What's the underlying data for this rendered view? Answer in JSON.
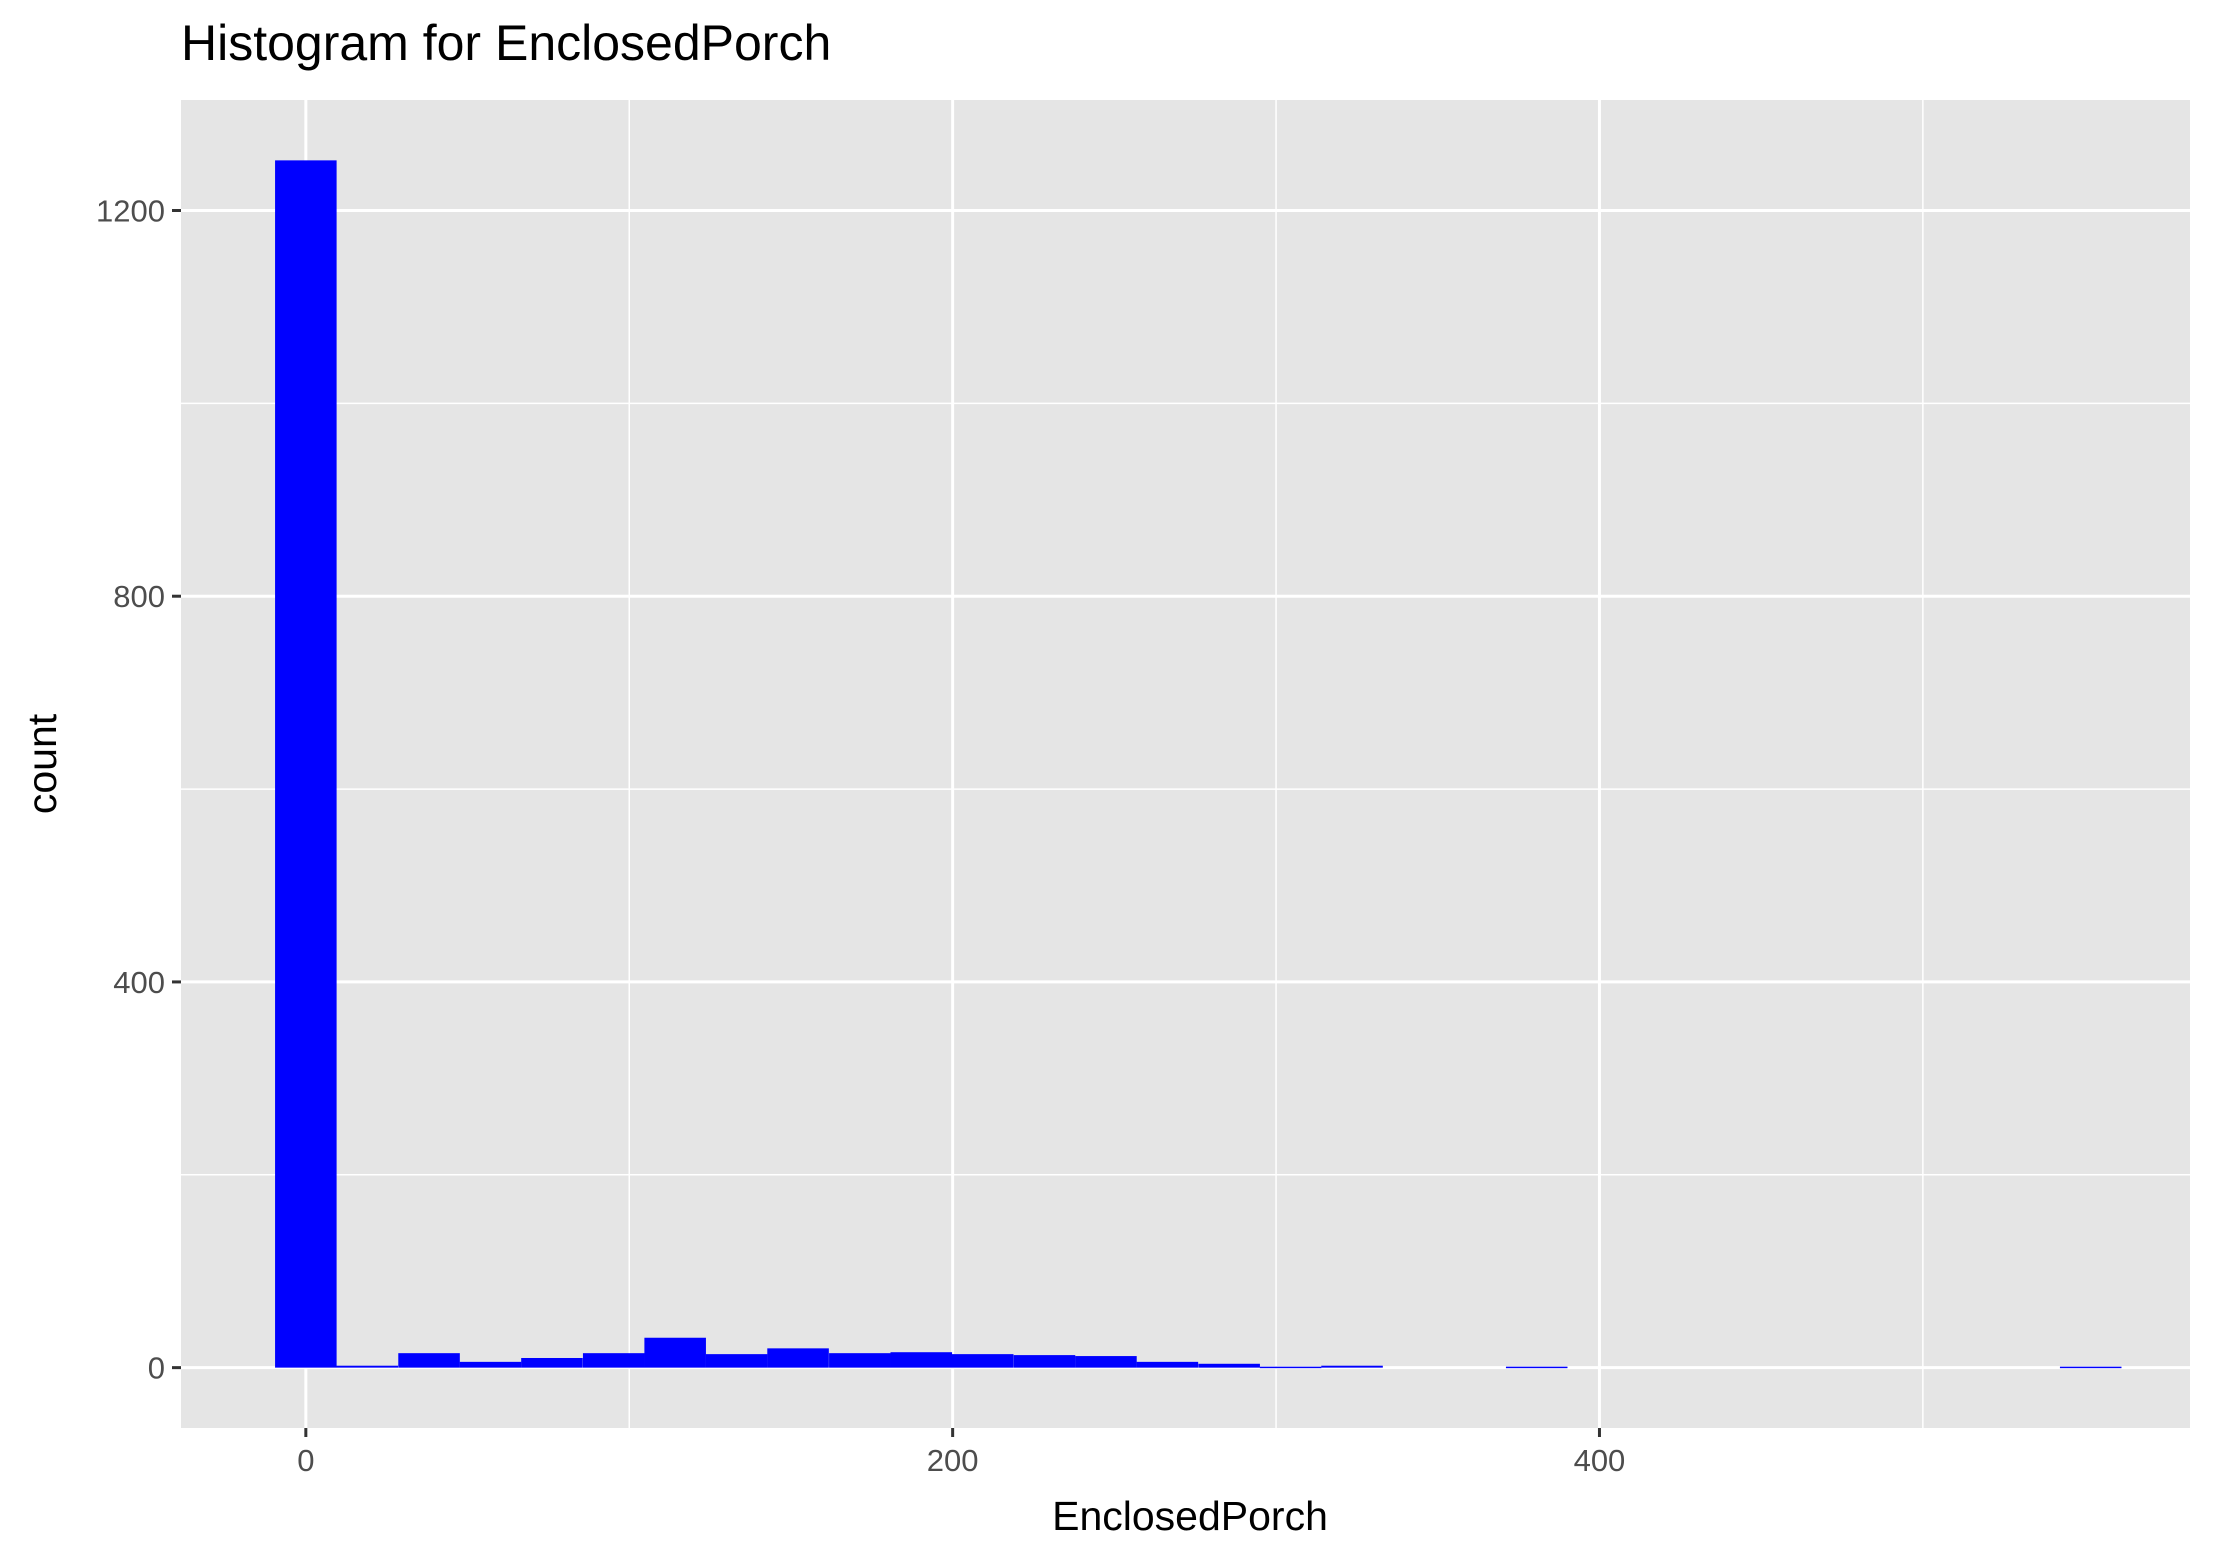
{
  "chart_data": {
    "type": "bar",
    "title": "Histogram for EnclosedPorch",
    "xlabel": "EnclosedPorch",
    "ylabel": "count",
    "xlim": [
      -38.6,
      582.6
    ],
    "ylim": [
      -62.6,
      1314.6
    ],
    "x_ticks": [
      0,
      200,
      400
    ],
    "y_ticks": [
      0,
      400,
      800,
      1200
    ],
    "bin_width": 19.03,
    "bar_color": "#0000FF",
    "panel_background": "#E5E5E5",
    "grid": true,
    "bins": [
      {
        "x": 0.0,
        "count": 1252
      },
      {
        "x": 19.0,
        "count": 2
      },
      {
        "x": 38.1,
        "count": 15
      },
      {
        "x": 57.1,
        "count": 6
      },
      {
        "x": 76.1,
        "count": 10
      },
      {
        "x": 95.2,
        "count": 15
      },
      {
        "x": 114.2,
        "count": 31
      },
      {
        "x": 133.2,
        "count": 14
      },
      {
        "x": 152.2,
        "count": 20
      },
      {
        "x": 171.3,
        "count": 15
      },
      {
        "x": 190.3,
        "count": 16
      },
      {
        "x": 209.3,
        "count": 14
      },
      {
        "x": 228.4,
        "count": 13
      },
      {
        "x": 247.4,
        "count": 12
      },
      {
        "x": 266.4,
        "count": 6
      },
      {
        "x": 285.5,
        "count": 4
      },
      {
        "x": 304.5,
        "count": 1
      },
      {
        "x": 323.5,
        "count": 2
      },
      {
        "x": 342.5,
        "count": 0
      },
      {
        "x": 361.6,
        "count": 0
      },
      {
        "x": 380.6,
        "count": 1
      },
      {
        "x": 399.6,
        "count": 0
      },
      {
        "x": 418.7,
        "count": 0
      },
      {
        "x": 437.7,
        "count": 0
      },
      {
        "x": 456.7,
        "count": 0
      },
      {
        "x": 475.8,
        "count": 0
      },
      {
        "x": 494.8,
        "count": 0
      },
      {
        "x": 513.8,
        "count": 0
      },
      {
        "x": 532.8,
        "count": 0
      },
      {
        "x": 551.9,
        "count": 1
      }
    ]
  }
}
